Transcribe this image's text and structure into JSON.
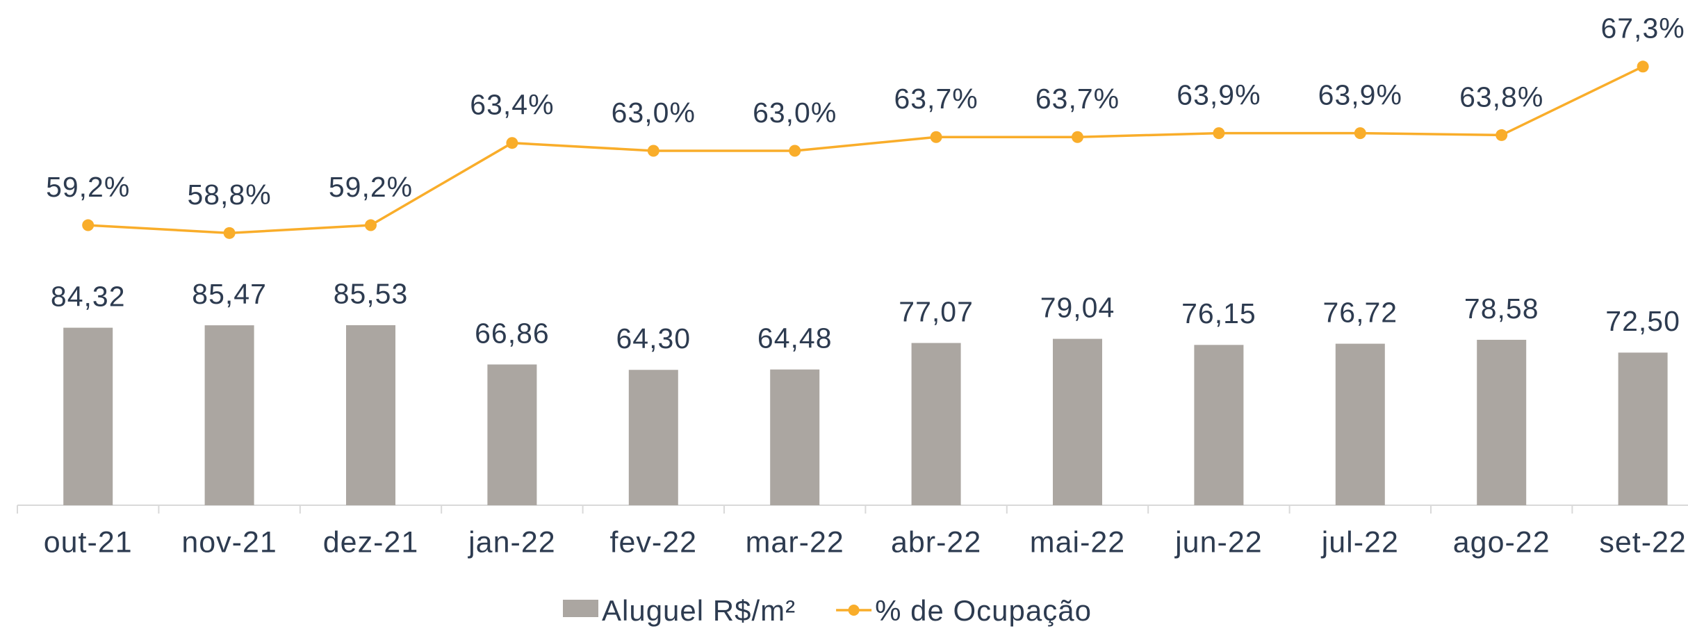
{
  "chart_data": {
    "type": "bar-line",
    "categories": [
      "out-21",
      "nov-21",
      "dez-21",
      "jan-22",
      "fev-22",
      "mar-22",
      "abr-22",
      "mai-22",
      "jun-22",
      "jul-22",
      "ago-22",
      "set-22"
    ],
    "series": [
      {
        "name": "Aluguel R$/m²",
        "type": "bar",
        "color": "#aba6a1",
        "values": [
          84.32,
          85.47,
          85.53,
          66.86,
          64.3,
          64.48,
          77.07,
          79.04,
          76.15,
          76.72,
          78.58,
          72.5
        ],
        "value_labels": [
          "84,32",
          "85,47",
          "85,53",
          "66,86",
          "64,30",
          "64,48",
          "77,07",
          "79,04",
          "76,15",
          "76,72",
          "78,58",
          "72,50"
        ]
      },
      {
        "name": "% de Ocupação",
        "type": "line",
        "axis": "y2",
        "color": "#f9ad2a",
        "values": [
          59.2,
          58.8,
          59.2,
          63.4,
          63.0,
          63.0,
          63.7,
          63.7,
          63.9,
          63.9,
          63.8,
          67.3
        ],
        "value_labels": [
          "59,2%",
          "58,8%",
          "59,2%",
          "63,4%",
          "63,0%",
          "63,0%",
          "63,7%",
          "63,7%",
          "63,9%",
          "63,9%",
          "63,8%",
          "67,3%"
        ]
      }
    ],
    "ylim": [
      0,
      240
    ],
    "y2lim": [
      44.9,
      70.7
    ],
    "legend": "bottom"
  }
}
